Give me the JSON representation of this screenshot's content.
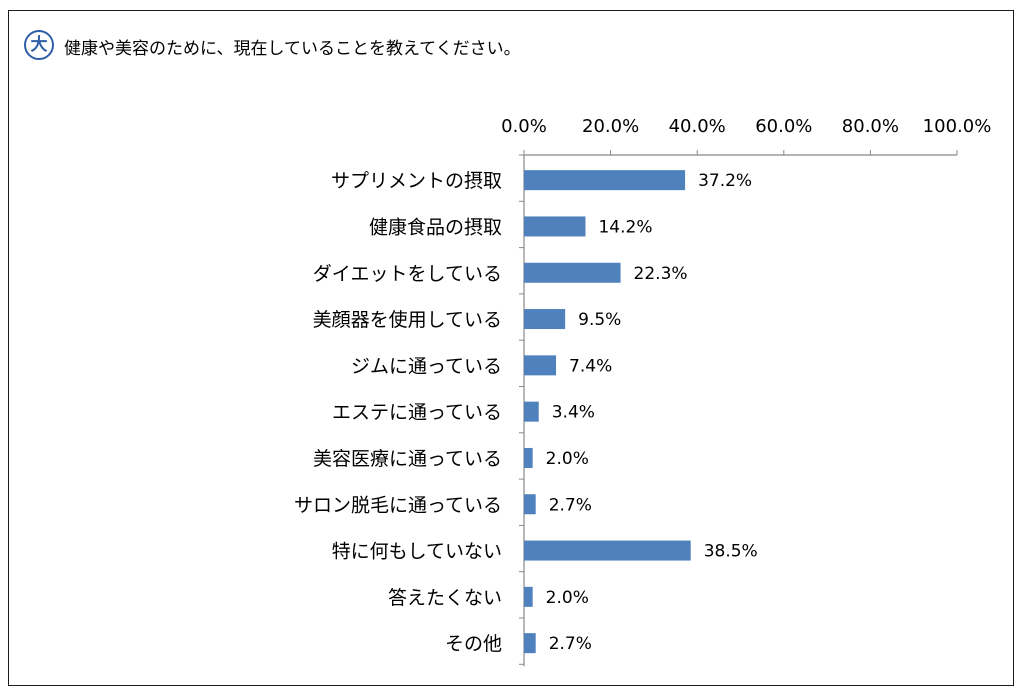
{
  "header": {
    "badge_text": "大",
    "title": "健康や美容のために、現在していることを教えてください。"
  },
  "chart_data": {
    "type": "bar",
    "orientation": "horizontal",
    "title": "健康や美容のために、現在していることを教えてください。",
    "xlabel": "",
    "ylabel": "",
    "xlim": [
      0,
      100
    ],
    "x_ticks": [
      "0.0%",
      "20.0%",
      "40.0%",
      "60.0%",
      "80.0%",
      "100.0%"
    ],
    "x_tick_values": [
      0,
      20,
      40,
      60,
      80,
      100
    ],
    "x_axis_position": "top",
    "grid": false,
    "bar_color": "#4f81bd",
    "categories": [
      "サプリメントの摂取",
      "健康食品の摂取",
      "ダイエットをしている",
      "美顔器を使用している",
      "ジムに通っている",
      "エステに通っている",
      "美容医療に通っている",
      "サロン脱毛に通っている",
      "特に何もしていない",
      "答えたくない",
      "その他"
    ],
    "values": [
      37.2,
      14.2,
      22.3,
      9.5,
      7.4,
      3.4,
      2.0,
      2.7,
      38.5,
      2.0,
      2.7
    ],
    "value_labels": [
      "37.2%",
      "14.2%",
      "22.3%",
      "9.5%",
      "7.4%",
      "3.4%",
      "2.0%",
      "2.7%",
      "38.5%",
      "2.0%",
      "2.7%"
    ]
  }
}
